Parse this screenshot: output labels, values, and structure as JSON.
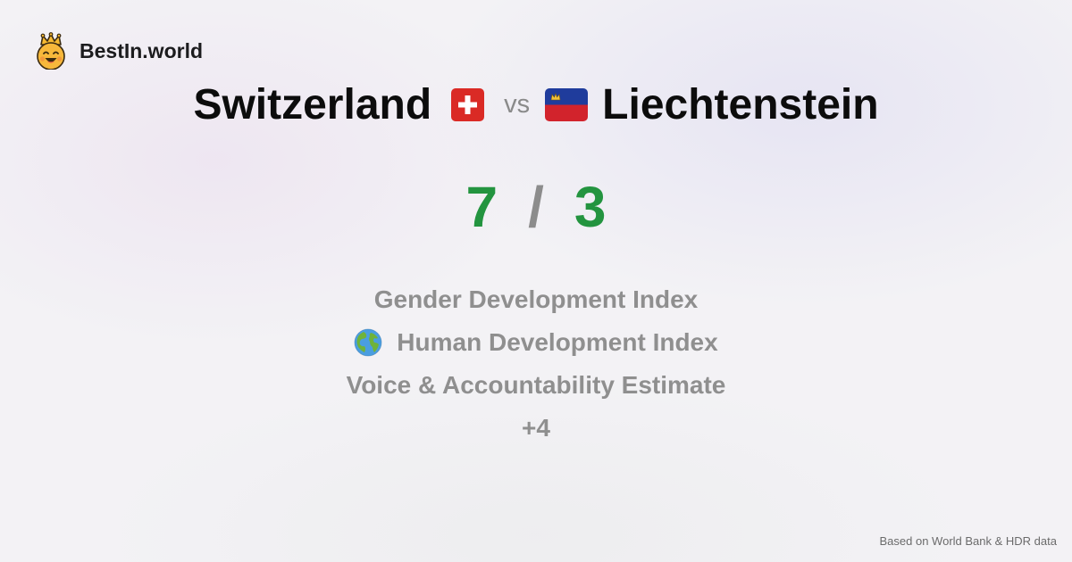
{
  "brand": {
    "name": "BestIn.world",
    "logo_icon": "crowned-smiley-icon"
  },
  "comparison": {
    "left": {
      "name": "Switzerland",
      "flag_icon": "switzerland-flag-icon"
    },
    "vs_label": "vs",
    "right": {
      "name": "Liechtenstein",
      "flag_icon": "liechtenstein-flag-icon"
    }
  },
  "score": {
    "left": "7",
    "separator": "/",
    "right": "3",
    "color": "#23943f"
  },
  "metrics": [
    {
      "label": "Gender Development Index",
      "icon": ""
    },
    {
      "label": "Human Development Index",
      "icon": "globe-icon"
    },
    {
      "label": "Voice & Accountability Estimate",
      "icon": ""
    }
  ],
  "more_label": "+4",
  "footer": "Based on World Bank & HDR data"
}
